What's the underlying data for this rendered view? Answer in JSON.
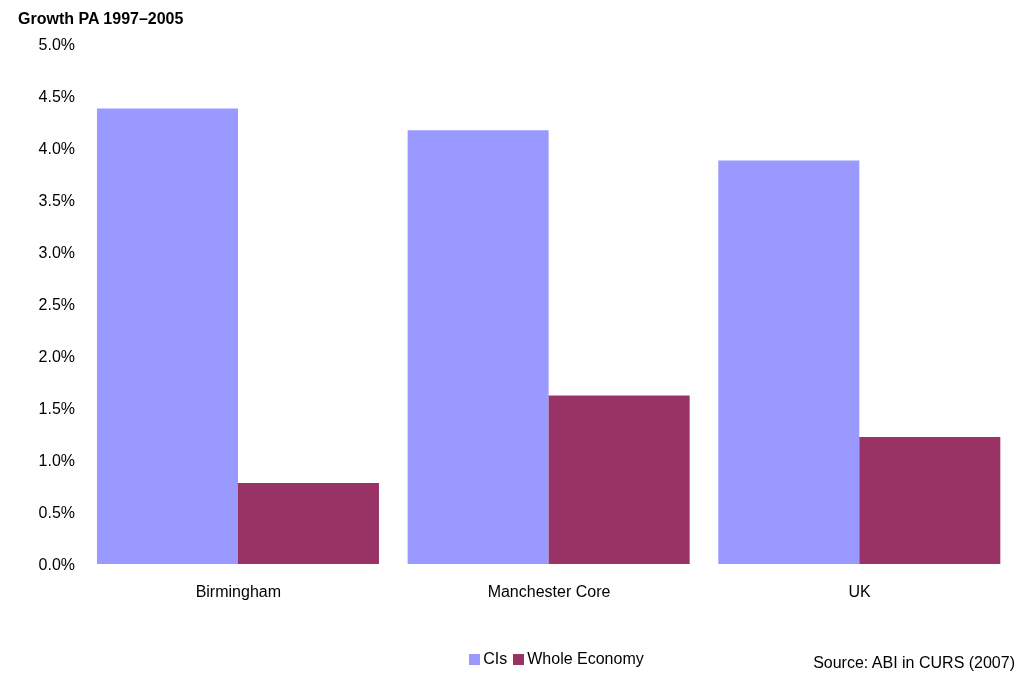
{
  "chart_data": {
    "type": "bar",
    "title": "Growth PA 1997–2005",
    "categories": [
      "Birmingham",
      "Manchester Core",
      "UK"
    ],
    "series": [
      {
        "name": "CIs",
        "color": "#9999ff",
        "values": [
          4.38,
          4.17,
          3.88
        ]
      },
      {
        "name": "Whole Economy",
        "color": "#993366",
        "values": [
          0.78,
          1.62,
          1.22
        ]
      }
    ],
    "ylim": [
      0,
      5
    ],
    "yticks": [
      {
        "value": 0,
        "label": "0.0%"
      },
      {
        "value": 0.5,
        "label": "0.5%"
      },
      {
        "value": 1,
        "label": "1.0%"
      },
      {
        "value": 1.5,
        "label": "1.5%"
      },
      {
        "value": 2,
        "label": "2.0%"
      },
      {
        "value": 2.5,
        "label": "2.5%"
      },
      {
        "value": 3,
        "label": "3.0%"
      },
      {
        "value": 3.5,
        "label": "3.5%"
      },
      {
        "value": 4,
        "label": "4.0%"
      },
      {
        "value": 4.5,
        "label": "4.5%"
      },
      {
        "value": 5,
        "label": "5.0%"
      }
    ],
    "legend": "bottom",
    "annotations": [
      "Source: ABI in CURS (2007)"
    ]
  }
}
